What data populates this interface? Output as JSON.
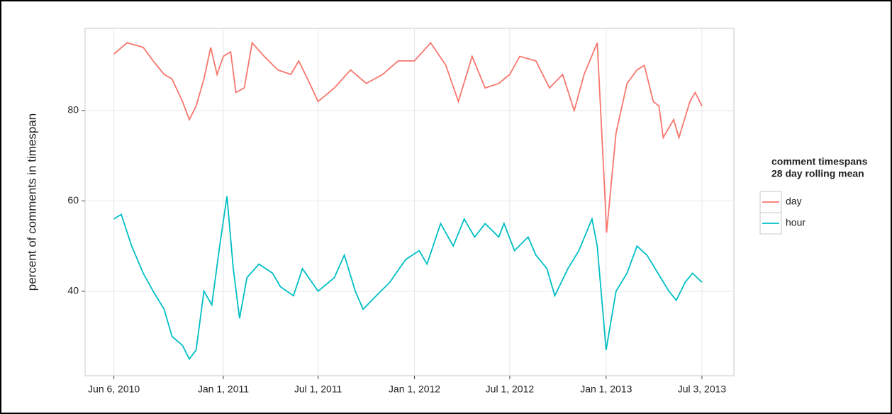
{
  "chart_data": {
    "type": "line",
    "y_label": "percent of comments in timespan",
    "legend_title": [
      "comment timespans",
      "28 day rolling mean"
    ],
    "legend": "right",
    "grid": true,
    "xlim": [
      "2010-04-12",
      "2013-09-02"
    ],
    "xticks": [
      {
        "value": "2010-06-06",
        "label": "Jun 6, 2010"
      },
      {
        "value": "2011-01-01",
        "label": "Jan 1, 2011"
      },
      {
        "value": "2011-07-01",
        "label": "Jul 1, 2011"
      },
      {
        "value": "2012-01-01",
        "label": "Jan 1, 2012"
      },
      {
        "value": "2012-07-01",
        "label": "Jul 1, 2012"
      },
      {
        "value": "2013-01-01",
        "label": "Jan 1, 2013"
      },
      {
        "value": "2013-07-03",
        "label": "Jul 3, 2013"
      }
    ],
    "ylim": [
      21.3,
      98.2
    ],
    "yticks": [
      40,
      60,
      80
    ],
    "series": [
      {
        "name": "day",
        "color": "#f8766d",
        "x": [
          "2010-06-06",
          "2010-07-01",
          "2010-08-01",
          "2010-08-20",
          "2010-09-10",
          "2010-09-25",
          "2010-10-15",
          "2010-10-28",
          "2010-11-10",
          "2010-11-25",
          "2010-12-08",
          "2010-12-20",
          "2011-01-01",
          "2011-01-15",
          "2011-01-25",
          "2011-02-10",
          "2011-02-25",
          "2011-03-20",
          "2011-04-15",
          "2011-05-10",
          "2011-05-25",
          "2011-06-15",
          "2011-07-01",
          "2011-08-01",
          "2011-09-01",
          "2011-10-01",
          "2011-11-01",
          "2011-12-01",
          "2012-01-01",
          "2012-02-01",
          "2012-03-01",
          "2012-03-25",
          "2012-04-20",
          "2012-05-15",
          "2012-06-10",
          "2012-07-01",
          "2012-07-20",
          "2012-08-20",
          "2012-09-15",
          "2012-10-10",
          "2012-11-01",
          "2012-11-20",
          "2012-12-15",
          "2012-12-28",
          "2013-01-02",
          "2013-01-20",
          "2013-02-10",
          "2013-03-01",
          "2013-03-15",
          "2013-04-01",
          "2013-04-12",
          "2013-04-20",
          "2013-05-10",
          "2013-05-20",
          "2013-06-10",
          "2013-06-20",
          "2013-07-03"
        ],
        "values": [
          92.5,
          95,
          94,
          91,
          88,
          87,
          82,
          78,
          81,
          87,
          94,
          88,
          92,
          93,
          84,
          85,
          95,
          92,
          89,
          88,
          91,
          86,
          82,
          85,
          89,
          86,
          88,
          91,
          91,
          95,
          90,
          82,
          92,
          85,
          86,
          88,
          92,
          91,
          85,
          88,
          80,
          88,
          95,
          65,
          53,
          75,
          86,
          89,
          90,
          82,
          81,
          74,
          78,
          74,
          82,
          84,
          81
        ]
      },
      {
        "name": "hour",
        "color": "#00bfc4",
        "x": [
          "2010-06-06",
          "2010-06-20",
          "2010-07-10",
          "2010-08-01",
          "2010-08-20",
          "2010-09-10",
          "2010-09-25",
          "2010-10-15",
          "2010-10-28",
          "2010-11-10",
          "2010-11-25",
          "2010-12-10",
          "2010-12-25",
          "2011-01-08",
          "2011-01-20",
          "2011-02-01",
          "2011-02-15",
          "2011-03-10",
          "2011-04-05",
          "2011-04-20",
          "2011-05-15",
          "2011-06-01",
          "2011-07-01",
          "2011-08-01",
          "2011-08-20",
          "2011-09-10",
          "2011-09-25",
          "2011-10-20",
          "2011-11-15",
          "2011-12-15",
          "2012-01-10",
          "2012-01-25",
          "2012-02-20",
          "2012-03-15",
          "2012-04-05",
          "2012-04-25",
          "2012-05-15",
          "2012-06-10",
          "2012-06-20",
          "2012-07-10",
          "2012-08-05",
          "2012-08-20",
          "2012-09-10",
          "2012-09-25",
          "2012-10-20",
          "2012-11-10",
          "2012-12-05",
          "2012-12-15",
          "2013-01-01",
          "2013-01-20",
          "2013-02-10",
          "2013-03-01",
          "2013-03-20",
          "2013-04-10",
          "2013-05-01",
          "2013-05-15",
          "2013-06-01",
          "2013-06-15",
          "2013-07-03"
        ],
        "values": [
          56,
          57,
          50,
          44,
          40,
          36,
          30,
          28,
          25,
          27,
          40,
          37,
          50,
          61,
          45,
          34,
          43,
          46,
          44,
          41,
          39,
          45,
          40,
          43,
          48,
          40,
          36,
          39,
          42,
          47,
          49,
          46,
          55,
          50,
          56,
          52,
          55,
          52,
          55,
          49,
          52,
          48,
          45,
          39,
          45,
          49,
          56,
          50,
          27,
          40,
          44,
          50,
          48,
          44,
          40,
          38,
          42,
          44,
          42
        ]
      }
    ]
  }
}
